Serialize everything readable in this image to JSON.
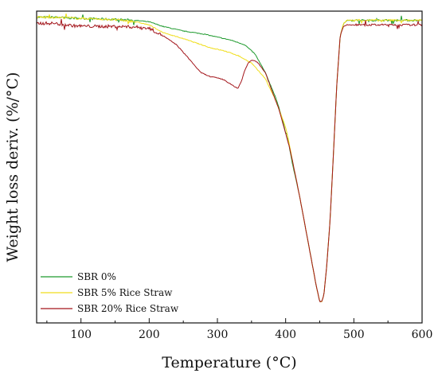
{
  "chart_data": {
    "type": "line",
    "title": "",
    "xlabel": "Temperature (°C)",
    "ylabel": "Weight loss deriv. (%/°C)",
    "xlim": [
      35,
      600
    ],
    "ylim": [
      -100,
      2
    ],
    "xticks": [
      100,
      200,
      300,
      400,
      500,
      600
    ],
    "x_tick_labels": [
      "100",
      "200",
      "300",
      "400",
      "500",
      "600"
    ],
    "y_tick_labels_shown": false,
    "grid": false,
    "legend_position": "bottom-left",
    "series": [
      {
        "name": "SBR 0%",
        "color": "#1f9a2e",
        "x": [
          35,
          60,
          90,
          120,
          150,
          180,
          200,
          220,
          250,
          280,
          300,
          320,
          340,
          355,
          370,
          385,
          395,
          400,
          402,
          405,
          410,
          420,
          430,
          440,
          445,
          450,
          453,
          456,
          460,
          465,
          470,
          475,
          480,
          485,
          490,
          500,
          550,
          600
        ],
        "y": [
          0,
          0,
          -0.3,
          -0.5,
          -0.7,
          -1,
          -1.5,
          -3,
          -4.5,
          -5.5,
          -6.5,
          -7.5,
          -9,
          -12,
          -18,
          -26,
          -33,
          -38,
          -38,
          -42,
          -48,
          -58,
          -70,
          -82,
          -88,
          -93,
          -93,
          -91,
          -82,
          -67,
          -45,
          -22,
          -6,
          -2,
          -1,
          -1,
          -1,
          -1
        ]
      },
      {
        "name": "SBR 5% Rice Straw",
        "color": "#f0de1c",
        "x": [
          35,
          60,
          90,
          120,
          150,
          180,
          200,
          220,
          250,
          270,
          290,
          310,
          330,
          350,
          370,
          385,
          395,
          400,
          405,
          410,
          420,
          430,
          440,
          445,
          450,
          453,
          456,
          460,
          465,
          470,
          475,
          480,
          485,
          490,
          500,
          550,
          600
        ],
        "y": [
          0,
          0,
          -0.3,
          -0.5,
          -0.8,
          -1.5,
          -2.5,
          -5,
          -7,
          -8.5,
          -10,
          -11,
          -12.5,
          -15,
          -20,
          -27,
          -33,
          -36,
          -41,
          -47,
          -58,
          -70,
          -82,
          -88,
          -93,
          -93,
          -91,
          -82,
          -67,
          -45,
          -22,
          -6,
          -2,
          -1,
          -1,
          -1,
          -1
        ]
      },
      {
        "name": "SBR 20% Rice Straw",
        "color": "#a3151b",
        "x": [
          35,
          60,
          90,
          120,
          150,
          180,
          200,
          220,
          240,
          260,
          275,
          290,
          300,
          310,
          320,
          330,
          335,
          340,
          345,
          350,
          355,
          360,
          370,
          380,
          390,
          400,
          405,
          410,
          420,
          430,
          440,
          445,
          450,
          453,
          456,
          460,
          465,
          470,
          475,
          480,
          485,
          490,
          500,
          550,
          600
        ],
        "y": [
          -2,
          -2,
          -2.8,
          -3,
          -3,
          -3.2,
          -3.6,
          -6,
          -9,
          -14,
          -18,
          -19.5,
          -19.8,
          -20.5,
          -22,
          -23.3,
          -21,
          -17.5,
          -15,
          -14,
          -14.2,
          -15,
          -18,
          -24,
          -30,
          -38,
          -42,
          -47,
          -58,
          -70,
          -82,
          -88,
          -93,
          -93,
          -91,
          -82,
          -67,
          -45,
          -22,
          -6,
          -3,
          -2.5,
          -2.5,
          -2.5,
          -2.5
        ]
      }
    ]
  }
}
